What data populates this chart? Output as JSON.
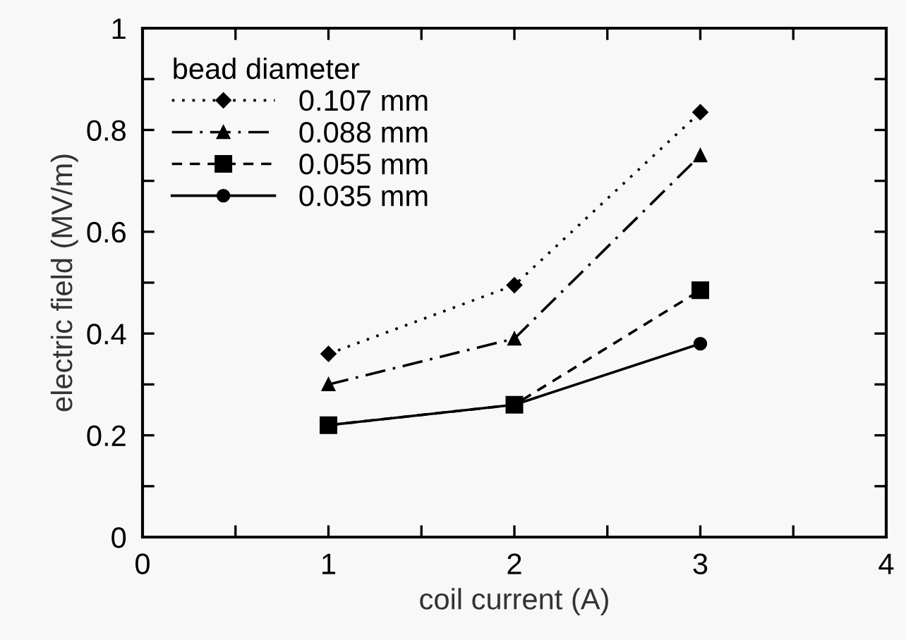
{
  "chart_data": {
    "type": "line",
    "xlabel": "coil current (A)",
    "ylabel": "electric field (MV/m)",
    "legend_title": "bead diameter",
    "legend": "top left",
    "grid": false,
    "x": [
      1,
      2,
      3
    ],
    "series": [
      {
        "name": "0.107 mm",
        "color": "#000000",
        "values": [
          0.36,
          0.495,
          0.835
        ],
        "marker": "diamond",
        "line_style": "dotted"
      },
      {
        "name": "0.088 mm",
        "color": "#000000",
        "values": [
          0.3,
          0.39,
          0.75
        ],
        "marker": "triangle",
        "line_style": "dashdot"
      },
      {
        "name": "0.055 mm",
        "color": "#000000",
        "values": [
          0.22,
          0.26,
          0.485
        ],
        "marker": "square",
        "line_style": "dashed"
      },
      {
        "name": "0.035 mm",
        "color": "#000000",
        "values": [
          0.22,
          0.26,
          0.38
        ],
        "marker": "circle",
        "line_style": "solid"
      }
    ],
    "xlim": [
      0,
      4
    ],
    "xticks": [
      0,
      {
        "value": 0.5,
        "label": null
      },
      1,
      {
        "value": 1.5,
        "label": null
      },
      2,
      {
        "value": 2.5,
        "label": null
      },
      3,
      {
        "value": 3.5,
        "label": null
      },
      4
    ],
    "ylim": [
      0,
      1
    ],
    "yticks": [
      0,
      {
        "value": 0.1,
        "label": null
      },
      0.2,
      {
        "value": 0.3,
        "label": null
      },
      0.4,
      {
        "value": 0.5,
        "label": null
      },
      0.6,
      {
        "value": 0.7,
        "label": null
      },
      0.8,
      {
        "value": 0.9,
        "label": null
      },
      1
    ]
  }
}
